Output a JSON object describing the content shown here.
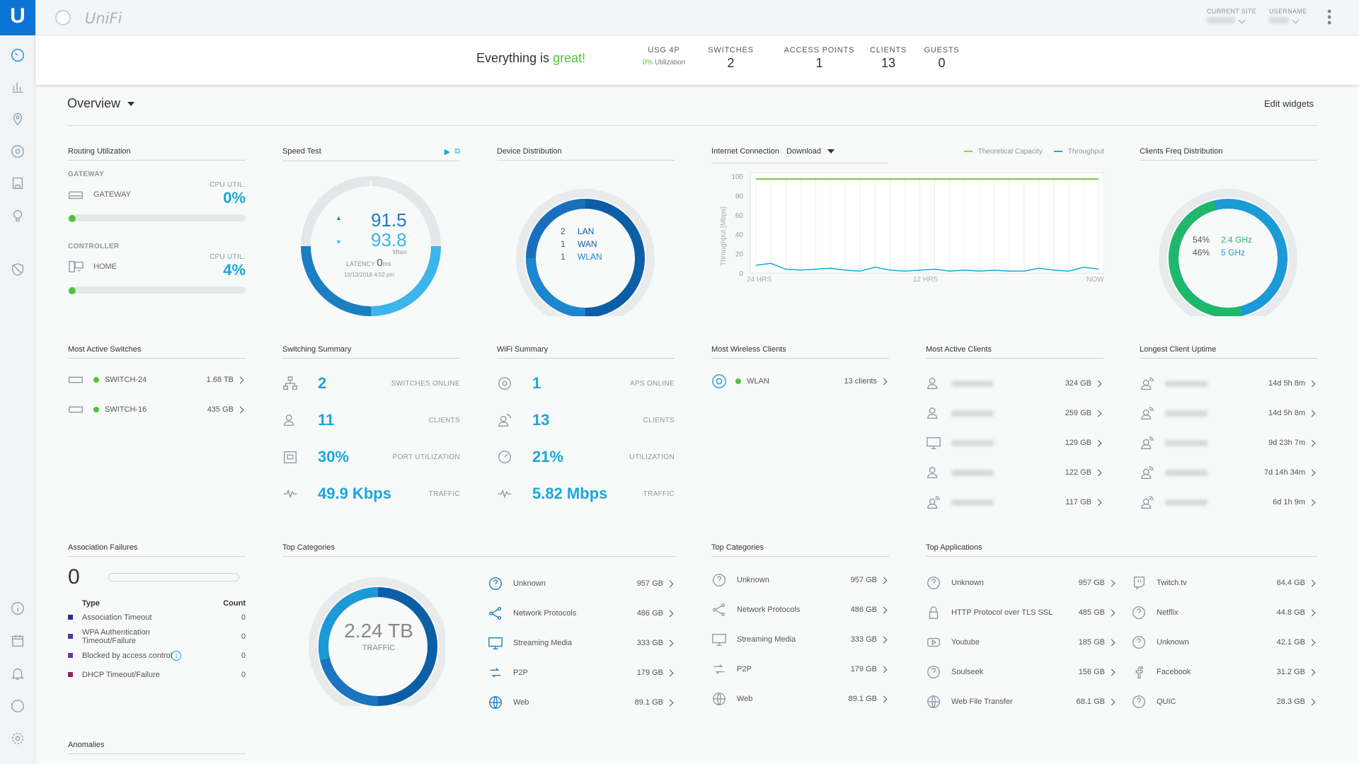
{
  "colors": {
    "accent": "#1aa7dc",
    "green": "#53c23a",
    "dark_blue": "#0c5ea6",
    "brand_blue": "#0c74d4"
  },
  "brand": {
    "logo": "U",
    "name": "UniFi"
  },
  "topbar": {
    "site_label": "CURRENT SITE",
    "user_label": "USERNAME"
  },
  "status": {
    "prefix": "Everything is",
    "highlight": "great!",
    "usg": {
      "label": "USG 4P",
      "pct": "0%",
      "sub": "Utilization"
    },
    "switches": {
      "label": "SWITCHES",
      "value": "2"
    },
    "aps": {
      "label": "ACCESS POINTS",
      "value": "1"
    },
    "clients": {
      "label": "CLIENTS",
      "value": "13"
    },
    "guests": {
      "label": "GUESTS",
      "value": "0"
    }
  },
  "overview": {
    "title": "Overview",
    "edit": "Edit widgets"
  },
  "routing": {
    "title": "Routing Utilization",
    "gateway": {
      "section": "GATEWAY",
      "name": "GATEWAY",
      "cpu_label": "CPU UTIL.",
      "cpu": "0%",
      "level": 0
    },
    "controller": {
      "section": "CONTROLLER",
      "name": "HOME",
      "cpu_label": "CPU UTIL.",
      "cpu": "4%",
      "level": 0.04
    }
  },
  "speedtest": {
    "title": "Speed Test",
    "up": "91.5",
    "down": "93.8",
    "unit": "Mbps",
    "latency_label": "LATENCY",
    "latency": "0",
    "latency_unit": "ms",
    "date": "10/13/2018 4:52 pm"
  },
  "devdist": {
    "title": "Device Distribution",
    "items": [
      {
        "n": "2",
        "label": "LAN"
      },
      {
        "n": "1",
        "label": "WAN"
      },
      {
        "n": "1",
        "label": "WLAN"
      }
    ]
  },
  "internet": {
    "title": "Internet Connection",
    "mode": "Download",
    "legend1": "Theoretical Capacity",
    "legend2": "Throughput",
    "ylabel": "Throughput [Mbps]",
    "yticks": [
      "100",
      "80",
      "60",
      "40",
      "20",
      "0"
    ],
    "xticks": [
      "24 HRS",
      "12 HRS",
      "NOW"
    ]
  },
  "chart_data": {
    "type": "line",
    "title": "Internet Connection",
    "ylabel": "Throughput [Mbps]",
    "ylim": [
      0,
      100
    ],
    "x_labels": [
      "24 HRS",
      "12 HRS",
      "NOW"
    ],
    "series": [
      {
        "name": "Theoretical Capacity",
        "values": [
          97,
          97,
          97,
          97,
          97,
          97,
          97,
          97,
          97,
          97,
          97,
          97,
          97,
          97,
          97,
          97,
          97,
          97,
          97,
          97,
          97,
          97,
          97,
          97
        ]
      },
      {
        "name": "Throughput",
        "values": [
          8,
          10,
          4,
          3,
          4,
          5,
          3,
          2,
          6,
          3,
          2,
          3,
          4,
          2,
          3,
          2,
          3,
          2,
          2,
          5,
          3,
          2,
          6,
          4
        ]
      }
    ]
  },
  "freq": {
    "title": "Clients Freq Distribution",
    "items": [
      {
        "pct": "54%",
        "label": "2.4 GHz"
      },
      {
        "pct": "46%",
        "label": "5 GHz"
      }
    ]
  },
  "switches": {
    "title": "Most Active Switches",
    "rows": [
      {
        "name": "SWITCH-24",
        "value": "1.68 TB"
      },
      {
        "name": "SWITCH-16",
        "value": "435 GB"
      }
    ]
  },
  "switching": {
    "title": "Switching Summary",
    "rows": [
      {
        "v": "2",
        "l": "SWITCHES ONLINE"
      },
      {
        "v": "11",
        "l": "CLIENTS"
      },
      {
        "v": "30%",
        "l": "PORT UTILIZATION"
      },
      {
        "v": "49.9 Kbps",
        "l": "TRAFFIC"
      }
    ]
  },
  "wifi": {
    "title": "WiFi Summary",
    "rows": [
      {
        "v": "1",
        "l": "APS ONLINE"
      },
      {
        "v": "13",
        "l": "CLIENTS"
      },
      {
        "v": "21%",
        "l": "UTILIZATION"
      },
      {
        "v": "5.82 Mbps",
        "l": "TRAFFIC"
      }
    ]
  },
  "wireless": {
    "title": "Most Wireless Clients",
    "name": "WLAN",
    "value": "13 clients"
  },
  "activeclients": {
    "title": "Most Active Clients",
    "rows": [
      "324 GB",
      "259 GB",
      "129 GB",
      "122 GB",
      "117 GB"
    ]
  },
  "uptime": {
    "title": "Longest Client Uptime",
    "rows": [
      "14d 5h 8m",
      "14d 5h 8m",
      "9d 23h 7m",
      "7d 14h 34m",
      "6d 1h 9m"
    ]
  },
  "assoc": {
    "title": "Association Failures",
    "count": "0",
    "col_type": "Type",
    "col_count": "Count",
    "rows": [
      {
        "t": "Association Timeout",
        "c": "0",
        "color": "#2b2f8a"
      },
      {
        "t": "WPA Authentication Timeout/Failure",
        "c": "0",
        "color": "#4b3a9a"
      },
      {
        "t": "Blocked by access control",
        "c": "0",
        "color": "#6b3a9a"
      },
      {
        "t": "DHCP Timeout/Failure",
        "c": "0",
        "color": "#8a2a5a"
      }
    ]
  },
  "anomalies": {
    "title": "Anomalies"
  },
  "topcat1": {
    "title": "Top Categories",
    "total": "2.24 TB",
    "total_label": "TRAFFIC",
    "rows": [
      {
        "n": "Unknown",
        "v": "957 GB",
        "icon": "question-icon"
      },
      {
        "n": "Network Protocols",
        "v": "486 GB",
        "icon": "share-icon"
      },
      {
        "n": "Streaming Media",
        "v": "333 GB",
        "icon": "monitor-icon"
      },
      {
        "n": "P2P",
        "v": "179 GB",
        "icon": "p2p-icon"
      },
      {
        "n": "Web",
        "v": "89.1 GB",
        "icon": "globe-icon"
      }
    ]
  },
  "topcat2": {
    "title": "Top Categories",
    "rows": [
      {
        "n": "Unknown",
        "v": "957 GB"
      },
      {
        "n": "Network Protocols",
        "v": "486 GB"
      },
      {
        "n": "Streaming Media",
        "v": "333 GB"
      },
      {
        "n": "P2P",
        "v": "179 GB"
      },
      {
        "n": "Web",
        "v": "89.1 GB"
      }
    ]
  },
  "topapps": {
    "title": "Top Applications",
    "left": [
      {
        "n": "Unknown",
        "v": "957 GB"
      },
      {
        "n": "HTTP Protocol over TLS SSL",
        "v": "485 GB"
      },
      {
        "n": "Youtube",
        "v": "185 GB"
      },
      {
        "n": "Soulseek",
        "v": "156 GB"
      },
      {
        "n": "Web File Transfer",
        "v": "68.1 GB"
      }
    ],
    "right": [
      {
        "n": "Twitch.tv",
        "v": "64.4 GB"
      },
      {
        "n": "Netflix",
        "v": "44.8 GB"
      },
      {
        "n": "Unknown",
        "v": "42.1 GB"
      },
      {
        "n": "Facebook",
        "v": "31.2 GB"
      },
      {
        "n": "QUIC",
        "v": "28.3 GB"
      }
    ]
  }
}
